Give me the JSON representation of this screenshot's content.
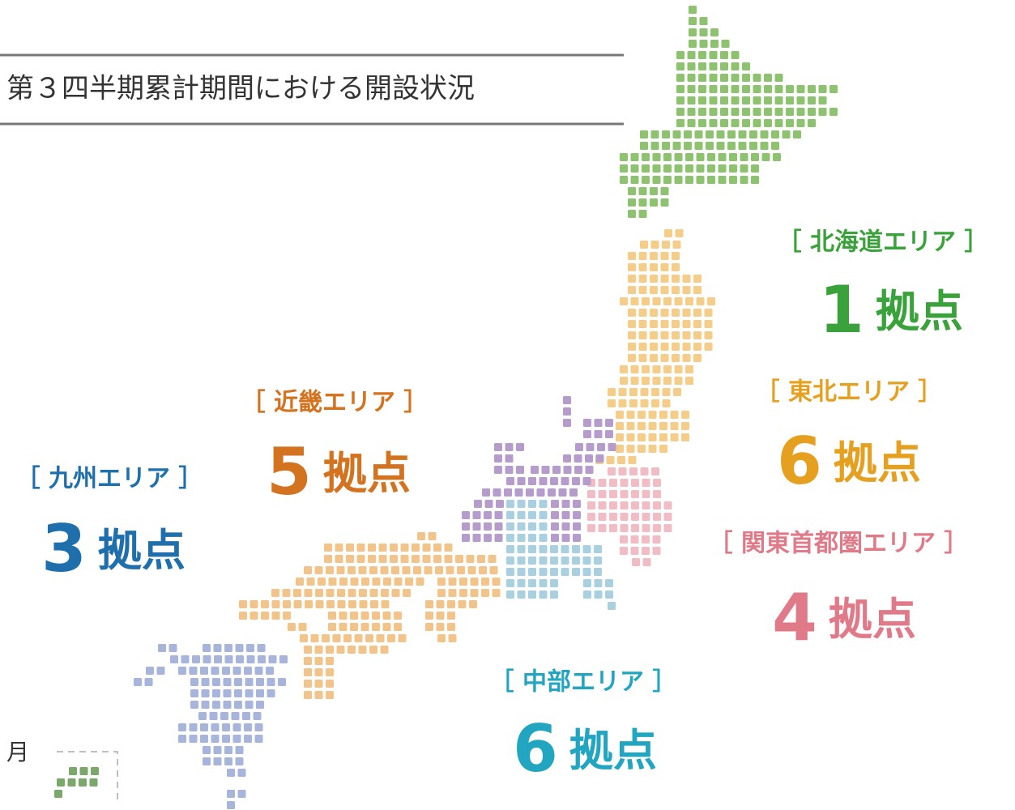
{
  "title": "第３四半期累計期間における開設状況",
  "inset_label": "月",
  "regions": [
    {
      "name": "［ 北海道エリア ］",
      "count": 1,
      "unit": "拠点"
    },
    {
      "name": "［ 東北エリア ］",
      "count": 6,
      "unit": "拠点"
    },
    {
      "name": "［ 関東首都圏エリア ］",
      "count": 4,
      "unit": "拠点"
    },
    {
      "name": "［ 中部エリア ］",
      "count": 6,
      "unit": "拠点"
    },
    {
      "name": "［ 近畿エリア ］",
      "count": 5,
      "unit": "拠点"
    },
    {
      "name": "［ 九州エリア ］",
      "count": 3,
      "unit": "拠点"
    }
  ]
}
